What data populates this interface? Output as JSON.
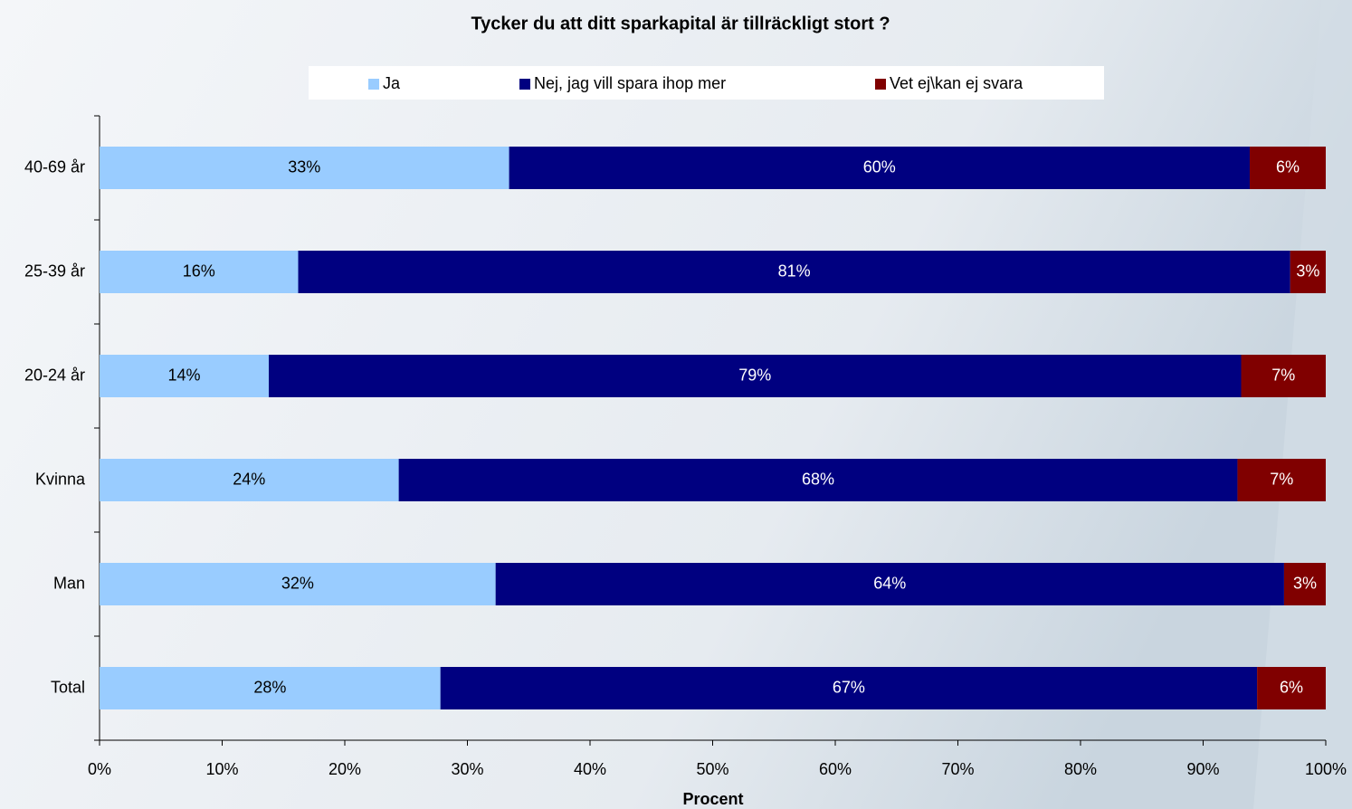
{
  "chart_data": {
    "type": "stacked-bar-horizontal",
    "title": "Tycker du att ditt sparkapital är tillräckligt stort ?",
    "xlabel": "Procent",
    "categories": [
      "40-69 år",
      "25-39 år",
      "20-24 år",
      "Kvinna",
      "Man",
      "Total"
    ],
    "series": [
      {
        "name": "Ja",
        "color": "#99ccff",
        "values": [
          33.4,
          16.2,
          13.8,
          24.4,
          32.3,
          27.8
        ],
        "value_labels": [
          "33%",
          "16%",
          "14%",
          "24%",
          "32%",
          "28%"
        ]
      },
      {
        "name": "Nej, jag vill spara ihop mer",
        "color": "#000080",
        "values": [
          60.4,
          80.9,
          79.3,
          68.4,
          64.3,
          66.6
        ],
        "value_labels": [
          "60%",
          "81%",
          "79%",
          "68%",
          "64%",
          "67%"
        ]
      },
      {
        "name": "Vet ej\\kan ej svara",
        "color": "#800000",
        "values": [
          6.2,
          2.9,
          6.9,
          7.2,
          3.4,
          5.6
        ],
        "value_labels": [
          "6%",
          "3%",
          "7%",
          "7%",
          "3%",
          "6%"
        ]
      }
    ],
    "xlim": [
      0,
      100
    ],
    "xticks": [
      {
        "value": 0,
        "label": "0%"
      },
      {
        "value": 10,
        "label": "10%"
      },
      {
        "value": 20,
        "label": "20%"
      },
      {
        "value": 30,
        "label": "30%"
      },
      {
        "value": 40,
        "label": "40%"
      },
      {
        "value": 50,
        "label": "50%"
      },
      {
        "value": 60,
        "label": "60%"
      },
      {
        "value": 70,
        "label": "70%"
      },
      {
        "value": 80,
        "label": "80%"
      },
      {
        "value": 90,
        "label": "90%"
      },
      {
        "value": 100,
        "label": "100%"
      }
    ],
    "legend": "top"
  }
}
